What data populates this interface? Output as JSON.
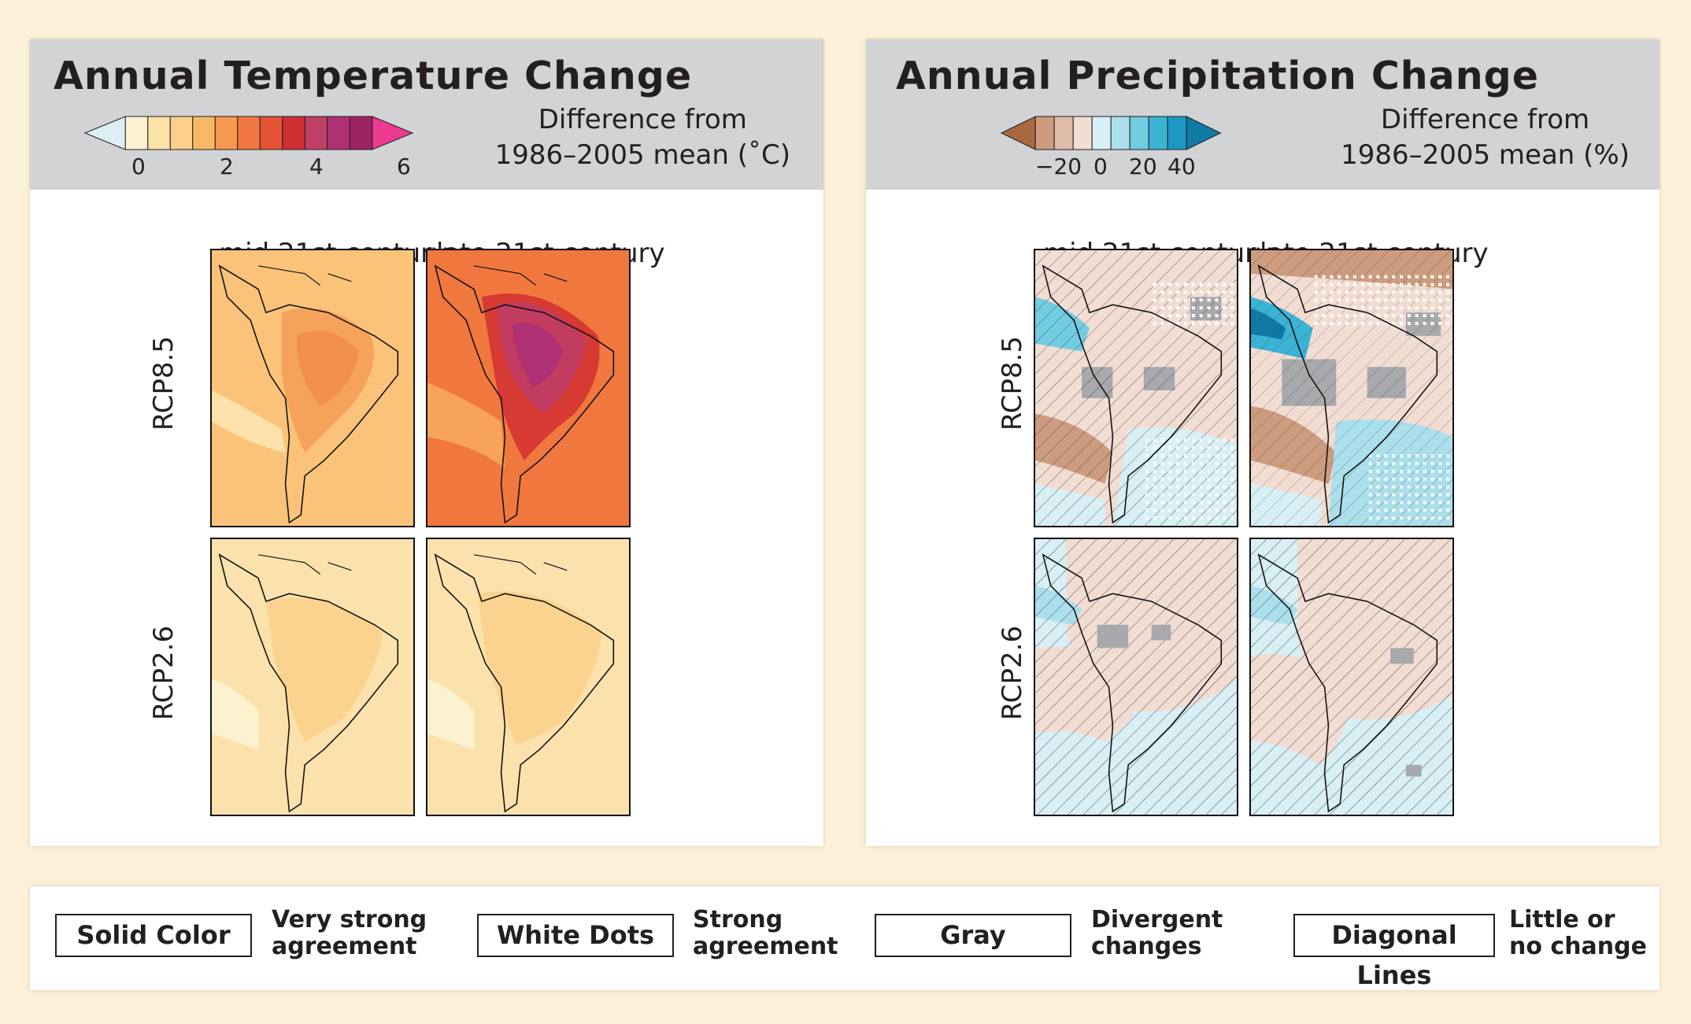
{
  "temperature": {
    "title": "Annual Temperature Change",
    "caption_line1": "Difference from",
    "caption_line2": "1986–2005 mean (˚C)",
    "ticks": [
      "0",
      "2",
      "4",
      "6"
    ],
    "colors": [
      "#ddeef5",
      "#fdf2cf",
      "#fbe3a8",
      "#fbd08a",
      "#f9b866",
      "#f6994e",
      "#f07840",
      "#e55337",
      "#d02f32",
      "#bf3e63",
      "#b03074",
      "#9c2462",
      "#ec3a90"
    ],
    "col_labels": [
      "mid 21st century",
      "late 21st century"
    ],
    "row_labels": [
      "RCP8.5",
      "RCP2.6"
    ]
  },
  "precipitation": {
    "title": "Annual Precipitation Change",
    "caption_line1": "Difference from",
    "caption_line2": "1986–2005 mean (%)",
    "ticks": [
      "−20",
      "0",
      "20",
      "40"
    ],
    "colors": [
      "#a9693f",
      "#cd9b7e",
      "#e0bcaa",
      "#f2ddd3",
      "#d7eff5",
      "#abdfec",
      "#72cce2",
      "#3bb3d5",
      "#1d97c3",
      "#0f7aa4"
    ],
    "col_labels": [
      "mid 21st century",
      "late 21st century"
    ],
    "row_labels": [
      "RCP8.5",
      "RCP2.6"
    ]
  },
  "key": [
    {
      "box": "Solid Color",
      "desc_line1": "Very strong",
      "desc_line2": "agreement"
    },
    {
      "box": "White Dots",
      "desc_line1": "Strong",
      "desc_line2": "agreement"
    },
    {
      "box": "Gray",
      "desc_line1": "Divergent",
      "desc_line2": "changes"
    },
    {
      "box": "Diagonal Lines",
      "desc_line1": "Little or",
      "desc_line2": "no change"
    }
  ]
}
